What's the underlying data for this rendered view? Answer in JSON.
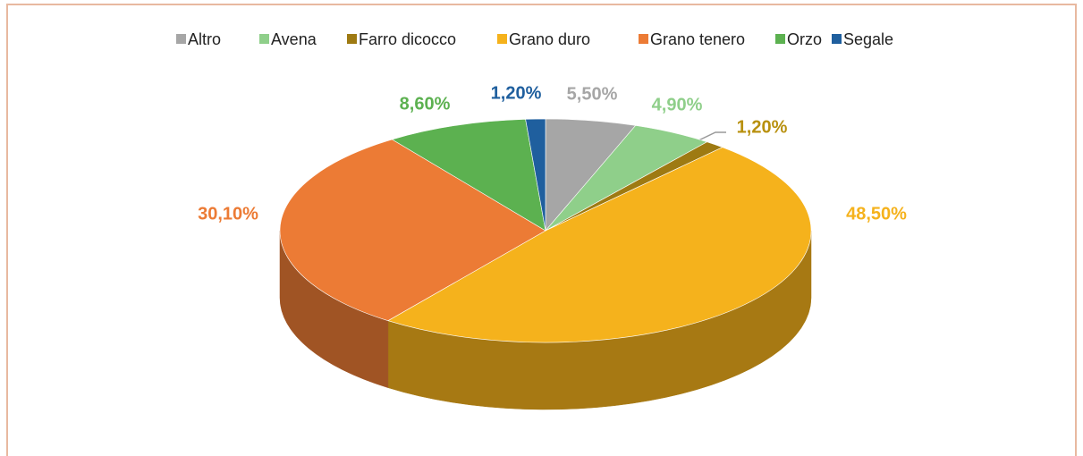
{
  "chart_data": {
    "type": "pie3d",
    "categories": [
      "Altro",
      "Avena",
      "Farro dicocco",
      "Grano duro",
      "Grano tenero",
      "Orzo",
      "Segale"
    ],
    "values": [
      5.5,
      4.9,
      1.2,
      48.5,
      30.1,
      8.6,
      1.2
    ],
    "value_labels": [
      "5,50%",
      "4,90%",
      "1,20%",
      "48,50%",
      "30,10%",
      "8,60%",
      "1,20%"
    ],
    "colors": [
      "#a6a6a6",
      "#8fcf8a",
      "#9e7a12",
      "#f5b21c",
      "#ec7b35",
      "#5cb150",
      "#1f5f9e"
    ],
    "label_colors": [
      "#a6a6a6",
      "#8fcf8a",
      "#b8900e",
      "#f5b21c",
      "#ec7b35",
      "#5cb150",
      "#1f5f9e"
    ],
    "legend": "top"
  }
}
